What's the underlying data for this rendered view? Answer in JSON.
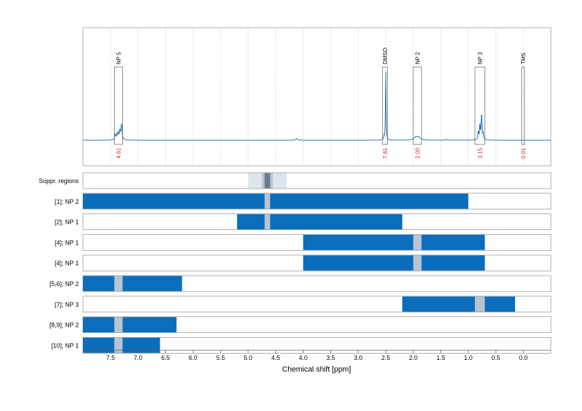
{
  "chart_data": {
    "type": "line",
    "x_axis": {
      "label": "Chemical shift [ppm]",
      "range": [
        8.0,
        -0.5
      ],
      "reversed": true,
      "ticks": [
        7.5,
        7.0,
        6.5,
        6.0,
        5.5,
        5.0,
        4.5,
        4.0,
        3.5,
        3.0,
        2.5,
        2.0,
        1.5,
        1.0,
        0.5,
        0.0
      ],
      "tick_labels": [
        "7.5",
        "7.0",
        "6.5",
        "6.0",
        "5.5",
        "5.0",
        "4.5",
        "4.0",
        "3.5",
        "3.0",
        "2.5",
        "2.0",
        "1.5",
        "1.0",
        "0.5",
        "0.0"
      ]
    },
    "grid": "vertical dashed",
    "colors": {
      "spectrum": "#1f6fb2",
      "range_bar": "#0a6ebd",
      "suppressed_light": "#dde5ec",
      "suppressed_mid": "#b8c4d0",
      "suppressed_dark": "#6b7b8c",
      "peak_box": "#555555",
      "integral_text": "#d62728",
      "row_border": "#999999"
    },
    "spectrum": {
      "baseline": 0,
      "peaks": [
        {
          "x": 7.3,
          "h": 0.22,
          "w": 0.012
        },
        {
          "x": 7.33,
          "h": 0.12,
          "w": 0.01
        },
        {
          "x": 7.36,
          "h": 0.1,
          "w": 0.01
        },
        {
          "x": 7.39,
          "h": 0.08,
          "w": 0.01
        },
        {
          "x": 7.42,
          "h": 0.07,
          "w": 0.01
        },
        {
          "x": 4.12,
          "h": 0.025,
          "w": 0.015
        },
        {
          "x": 2.5,
          "h": 0.98,
          "w": 0.006
        },
        {
          "x": 2.53,
          "h": 0.05,
          "w": 0.006
        },
        {
          "x": 1.95,
          "h": 0.04,
          "w": 0.04
        },
        {
          "x": 1.9,
          "h": 0.035,
          "w": 0.04
        },
        {
          "x": 1.4,
          "h": 0.01,
          "w": 0.02
        },
        {
          "x": 0.76,
          "h": 0.38,
          "w": 0.008
        },
        {
          "x": 0.79,
          "h": 0.22,
          "w": 0.008
        },
        {
          "x": 0.82,
          "h": 0.12,
          "w": 0.008
        },
        {
          "x": 0.73,
          "h": 0.1,
          "w": 0.008
        }
      ]
    },
    "peak_annotations": [
      {
        "label": "NP 5",
        "from": 7.43,
        "to": 7.28,
        "integral": "4.61"
      },
      {
        "label": "DMSO",
        "from": 2.56,
        "to": 2.47,
        "integral": "7.61"
      },
      {
        "label": "NP 2",
        "from": 2.0,
        "to": 1.85,
        "integral": "2.00"
      },
      {
        "label": "NP 3",
        "from": 0.88,
        "to": 0.7,
        "integral": "3.15"
      },
      {
        "label": "TMS",
        "from": 0.03,
        "to": -0.02,
        "integral": "0.01"
      }
    ],
    "suppressed_regions": {
      "label": "Suppr. regions",
      "bands": [
        {
          "from": 5.0,
          "to": 4.3,
          "shade": "light"
        },
        {
          "from": 4.75,
          "to": 4.55,
          "shade": "mid"
        },
        {
          "from": 4.7,
          "to": 4.6,
          "shade": "dark"
        }
      ]
    },
    "range_rows": [
      {
        "label": "[1]; NP 2",
        "from": 8.0,
        "to": 1.0,
        "gaps": [
          {
            "from": 4.7,
            "to": 4.6
          }
        ]
      },
      {
        "label": "[2]; NP 1",
        "from": 5.2,
        "to": 2.2,
        "gaps": [
          {
            "from": 4.7,
            "to": 4.6
          }
        ]
      },
      {
        "label": "[4]; NP 1",
        "from": 4.0,
        "to": 0.7,
        "gaps": [
          {
            "from": 2.0,
            "to": 1.85
          }
        ]
      },
      {
        "label": "[4]; NP 1",
        "from": 4.0,
        "to": 0.7,
        "gaps": [
          {
            "from": 2.0,
            "to": 1.85
          }
        ]
      },
      {
        "label": "[5,6]; NP 2",
        "from": 8.0,
        "to": 6.2,
        "gaps": [
          {
            "from": 7.43,
            "to": 7.28
          }
        ]
      },
      {
        "label": "[7]; NP 3",
        "from": 2.2,
        "to": 0.15,
        "gaps": [
          {
            "from": 0.88,
            "to": 0.7
          }
        ]
      },
      {
        "label": "[8,9]; NP 2",
        "from": 8.0,
        "to": 6.3,
        "gaps": [
          {
            "from": 7.43,
            "to": 7.28
          }
        ]
      },
      {
        "label": "[10]; NP 1",
        "from": 8.0,
        "to": 6.6,
        "gaps": [
          {
            "from": 7.43,
            "to": 7.28
          }
        ]
      }
    ]
  }
}
